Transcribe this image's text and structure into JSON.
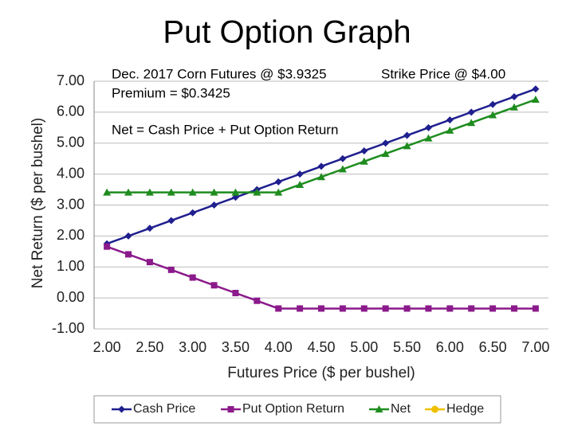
{
  "chart_data": {
    "type": "line",
    "title": "Put Option Graph",
    "annotations": [
      "Dec. 2017 Corn Futures @ $3.9325",
      "Strike Price @ $4.00",
      "Premium = $0.3425",
      "Net = Cash Price + Put Option Return"
    ],
    "x_label": "Futures Price ($ per bushel)",
    "y_label": "Net Return ($ per bushel)",
    "x": [
      2,
      2.25,
      2.5,
      2.75,
      3,
      3.25,
      3.5,
      3.75,
      4,
      4.25,
      4.5,
      4.75,
      5,
      5.25,
      5.5,
      5.75,
      6,
      6.25,
      6.5,
      6.75,
      7
    ],
    "series": [
      {
        "name": "Cash Price",
        "color": "#1f1f8f",
        "marker": "diamond",
        "values": [
          1.75,
          2,
          2.25,
          2.5,
          2.75,
          3,
          3.25,
          3.5,
          3.75,
          4,
          4.25,
          4.5,
          4.75,
          5,
          5.25,
          5.5,
          5.75,
          6,
          6.25,
          6.5,
          6.75
        ]
      },
      {
        "name": "Put Option Return",
        "color": "#8b1a8b",
        "marker": "square",
        "values": [
          1.6575,
          1.4075,
          1.1575,
          0.9075,
          0.6575,
          0.4075,
          0.1575,
          -0.0925,
          -0.3425,
          -0.3425,
          -0.3425,
          -0.3425,
          -0.3425,
          -0.3425,
          -0.3425,
          -0.3425,
          -0.3425,
          -0.3425,
          -0.3425,
          -0.3425,
          -0.3425
        ]
      },
      {
        "name": "Net",
        "color": "#1e8c1e",
        "marker": "triangle",
        "values": [
          3.4075,
          3.4075,
          3.4075,
          3.4075,
          3.4075,
          3.4075,
          3.4075,
          3.4075,
          3.4075,
          3.6575,
          3.9075,
          4.1575,
          4.4075,
          4.6575,
          4.9075,
          5.1575,
          5.4075,
          5.6575,
          5.9075,
          6.1575,
          6.4075
        ]
      },
      {
        "name": "Hedge",
        "color": "#f0c000",
        "marker": "circle",
        "values": [
          null,
          null,
          null,
          null,
          null,
          null,
          null,
          null,
          null,
          null,
          null,
          null,
          null,
          null,
          null,
          null,
          null,
          null,
          null,
          null,
          null
        ]
      }
    ],
    "xlim": [
      1.85,
      7.15
    ],
    "ylim": [
      -1,
      7
    ],
    "xticks": [
      {
        "value": 2,
        "label": "2.00"
      },
      {
        "value": 2.5,
        "label": "2.50"
      },
      {
        "value": 3,
        "label": "3.00"
      },
      {
        "value": 3.5,
        "label": "3.50"
      },
      {
        "value": 4,
        "label": "4.00"
      },
      {
        "value": 4.5,
        "label": "4.50"
      },
      {
        "value": 5,
        "label": "5.00"
      },
      {
        "value": 5.5,
        "label": "5.50"
      },
      {
        "value": 6,
        "label": "6.00"
      },
      {
        "value": 6.5,
        "label": "6.50"
      },
      {
        "value": 7,
        "label": "7.00"
      }
    ],
    "yticks": [
      {
        "value": -1,
        "label": "-1.00"
      },
      {
        "value": 0,
        "label": "0.00"
      },
      {
        "value": 1,
        "label": "1.00"
      },
      {
        "value": 2,
        "label": "2.00"
      },
      {
        "value": 3,
        "label": "3.00"
      },
      {
        "value": 4,
        "label": "4.00"
      },
      {
        "value": 5,
        "label": "5.00"
      },
      {
        "value": 6,
        "label": "6.00"
      },
      {
        "value": 7,
        "label": "7.00"
      }
    ],
    "grid": true,
    "legend": "bottom"
  }
}
